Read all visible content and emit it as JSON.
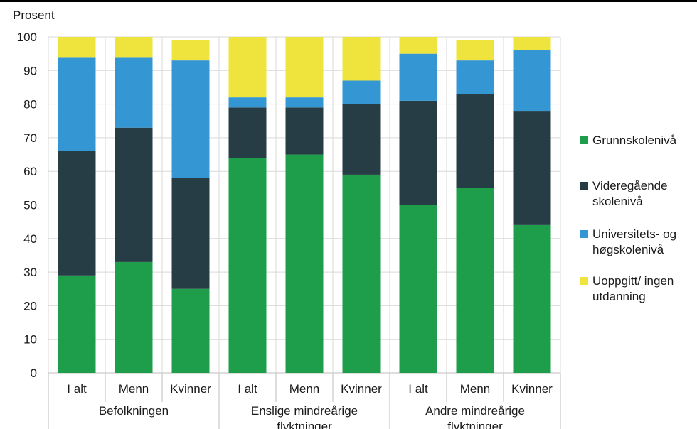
{
  "chart_data": {
    "type": "bar",
    "stacked": true,
    "ylabel": "Prosent",
    "ylim": [
      0,
      100
    ],
    "yticks": [
      0,
      10,
      20,
      30,
      40,
      50,
      60,
      70,
      80,
      90,
      100
    ],
    "grid": true,
    "legend_position": "right",
    "groups": [
      {
        "label_lines": [
          "Befolkningen"
        ],
        "categories": [
          "I alt",
          "Menn",
          "Kvinner"
        ]
      },
      {
        "label_lines": [
          "Enslige mindreårige",
          "flyktninger"
        ],
        "categories": [
          "I alt",
          "Menn",
          "Kvinner"
        ]
      },
      {
        "label_lines": [
          "Andre mindreårige",
          "flyktninger"
        ],
        "categories": [
          "I alt",
          "Menn",
          "Kvinner"
        ]
      }
    ],
    "series": [
      {
        "name_lines": [
          "Grunnskolenivå"
        ],
        "color": "#1e9e4b",
        "values": [
          29,
          33,
          25,
          64,
          65,
          59,
          50,
          55,
          44
        ]
      },
      {
        "name_lines": [
          "Videregående",
          "skolenivå"
        ],
        "color": "#263d45",
        "values": [
          37,
          40,
          33,
          15,
          14,
          21,
          31,
          28,
          34
        ]
      },
      {
        "name_lines": [
          "Universitets- og",
          "høgskolenivå"
        ],
        "color": "#3497d4",
        "values": [
          28,
          21,
          35,
          3,
          3,
          7,
          14,
          10,
          18
        ]
      },
      {
        "name_lines": [
          "Uoppgitt/ ingen",
          "utdanning"
        ],
        "color": "#efe43d",
        "values": [
          6,
          6,
          6,
          18,
          18,
          13,
          5,
          6,
          4
        ]
      }
    ]
  }
}
